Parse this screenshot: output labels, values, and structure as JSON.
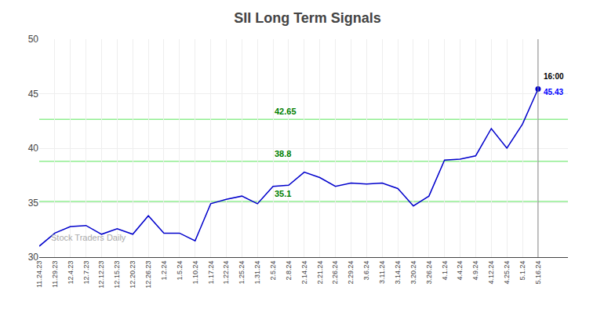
{
  "chart_data": {
    "type": "line",
    "title": "SII Long Term Signals",
    "categories": [
      "11.24.23",
      "11.29.23",
      "12.4.23",
      "12.7.23",
      "12.12.23",
      "12.15.23",
      "12.20.23",
      "12.26.23",
      "1.2.24",
      "1.5.24",
      "1.10.24",
      "1.17.24",
      "1.22.24",
      "1.25.24",
      "1.31.24",
      "2.5.24",
      "2.8.24",
      "2.14.24",
      "2.21.24",
      "2.26.24",
      "2.29.24",
      "3.6.24",
      "3.11.24",
      "3.14.24",
      "3.20.24",
      "3.26.24",
      "4.1.24",
      "4.4.24",
      "4.9.24",
      "4.12.24",
      "4.25.24",
      "5.1.24",
      "5.16.24"
    ],
    "values": [
      31.0,
      32.2,
      32.8,
      32.9,
      32.1,
      32.6,
      32.1,
      33.8,
      32.2,
      32.2,
      31.5,
      34.9,
      35.3,
      35.6,
      34.9,
      36.5,
      36.6,
      37.8,
      37.3,
      36.5,
      36.8,
      36.7,
      36.8,
      36.3,
      34.7,
      35.6,
      38.9,
      39.0,
      39.3,
      41.8,
      40.0,
      42.2,
      45.43
    ],
    "color": "#0000cc",
    "ylim": [
      30,
      50
    ],
    "yticks": [
      30,
      35,
      40,
      45,
      50
    ],
    "grid": true,
    "reference_lines": [
      {
        "value": 35.1,
        "label": "35.1",
        "color": "#90EE90",
        "label_color": "#008000"
      },
      {
        "value": 38.8,
        "label": "38.8",
        "color": "#90EE90",
        "label_color": "#008000"
      },
      {
        "value": 42.65,
        "label": "42.65",
        "color": "#90EE90",
        "label_color": "#008000"
      }
    ],
    "annotations": [
      {
        "text": "16:00",
        "color": "#000000"
      },
      {
        "text": "45.43",
        "color": "#0000ff"
      }
    ],
    "watermark": "Stock Traders Daily"
  }
}
